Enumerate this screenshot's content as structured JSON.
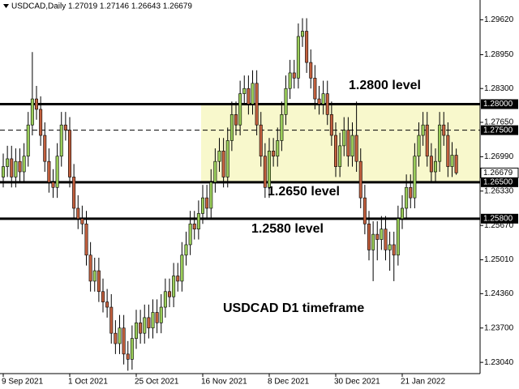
{
  "chart_data": {
    "type": "candlestick",
    "title": "USDCAD,Daily  1.27019 1.27146 1.26643 1.26679",
    "categories": [
      "9 Sep 2021",
      null,
      null,
      null,
      null,
      null,
      null,
      null,
      null,
      null,
      null,
      null,
      null,
      null,
      null,
      null,
      "1 Oct 2021",
      null,
      null,
      null,
      null,
      null,
      null,
      null,
      null,
      null,
      null,
      null,
      null,
      null,
      null,
      null,
      "25 Oct 2021",
      null,
      null,
      null,
      null,
      null,
      null,
      null,
      null,
      null,
      null,
      null,
      null,
      null,
      null,
      null,
      "16 Nov 2021",
      null,
      null,
      null,
      null,
      null,
      null,
      null,
      null,
      null,
      null,
      null,
      null,
      null,
      null,
      null,
      "8 Dec 2021",
      null,
      null,
      null,
      null,
      null,
      null,
      null,
      null,
      null,
      null,
      null,
      null,
      null,
      null,
      null,
      "30 Dec 2021",
      null,
      null,
      null,
      null,
      null,
      null,
      null,
      null,
      null,
      null,
      null,
      null,
      null,
      null,
      null,
      "21 Jan 2022",
      null,
      null,
      null,
      null,
      null,
      null,
      null,
      null,
      null,
      null,
      null,
      null,
      null
    ],
    "open": [
      1.266,
      1.268,
      1.2695,
      1.266,
      1.269,
      1.267,
      1.27,
      1.276,
      1.281,
      1.279,
      1.274,
      1.269,
      1.265,
      1.264,
      1.27,
      1.276,
      1.275,
      1.266,
      1.26,
      1.258,
      1.257,
      1.251,
      1.246,
      1.248,
      1.244,
      1.242,
      1.241,
      1.236,
      1.234,
      1.237,
      1.232,
      1.231,
      1.235,
      1.238,
      1.236,
      1.239,
      1.237,
      1.24,
      1.238,
      1.241,
      1.244,
      1.243,
      1.247,
      1.246,
      1.251,
      1.253,
      1.257,
      1.256,
      1.259,
      1.262,
      1.26,
      1.265,
      1.269,
      1.271,
      1.266,
      1.273,
      1.278,
      1.276,
      1.282,
      1.283,
      1.28,
      1.284,
      1.276,
      1.27,
      1.264,
      1.271,
      1.27,
      1.273,
      1.278,
      1.283,
      1.286,
      1.285,
      1.293,
      1.294,
      1.288,
      1.285,
      1.281,
      1.28,
      1.282,
      1.278,
      1.274,
      1.268,
      1.272,
      1.275,
      1.27,
      1.274,
      1.269,
      1.262,
      1.257,
      1.252,
      1.255,
      1.254,
      1.256,
      1.252,
      1.253,
      1.251,
      1.258,
      1.26,
      1.264,
      1.262,
      1.27,
      1.274,
      1.276,
      1.27,
      1.267,
      1.269,
      1.276,
      1.274,
      1.268,
      1.27019
    ],
    "high": [
      1.2705,
      1.272,
      1.272,
      1.2715,
      1.2715,
      1.2725,
      1.2785,
      1.29,
      1.2835,
      1.2815,
      1.2765,
      1.2715,
      1.2675,
      1.2725,
      1.2785,
      1.2785,
      1.2775,
      1.2685,
      1.2625,
      1.2605,
      1.2595,
      1.2535,
      1.2505,
      1.2505,
      1.2465,
      1.2445,
      1.2435,
      1.2385,
      1.2395,
      1.2395,
      1.2345,
      1.2375,
      1.2405,
      1.2405,
      1.2415,
      1.2415,
      1.2425,
      1.2425,
      1.2435,
      1.2465,
      1.2465,
      1.2495,
      1.2495,
      1.2535,
      1.2555,
      1.2595,
      1.2595,
      1.2615,
      1.2645,
      1.2645,
      1.2675,
      1.2715,
      1.2735,
      1.2735,
      1.2755,
      1.2805,
      1.2805,
      1.2845,
      1.2855,
      1.2855,
      1.2865,
      1.2865,
      1.2785,
      1.2725,
      1.2735,
      1.2735,
      1.2755,
      1.2805,
      1.2855,
      1.2885,
      1.2885,
      1.2955,
      1.2965,
      1.2965,
      1.2905,
      1.2875,
      1.2835,
      1.2845,
      1.2845,
      1.2805,
      1.2765,
      1.2745,
      1.2775,
      1.2775,
      1.2765,
      1.2805,
      1.2715,
      1.2645,
      1.2595,
      1.2575,
      1.2575,
      1.2585,
      1.2585,
      1.2555,
      1.2555,
      1.2605,
      1.2625,
      1.2665,
      1.2665,
      1.2725,
      1.2765,
      1.2785,
      1.2785,
      1.2725,
      1.2715,
      1.2785,
      1.2785,
      1.2765,
      1.2727,
      1.27146
    ],
    "low": [
      1.264,
      1.266,
      1.264,
      1.264,
      1.265,
      1.265,
      1.268,
      1.274,
      1.277,
      1.272,
      1.267,
      1.263,
      1.262,
      1.262,
      1.268,
      1.273,
      1.264,
      1.258,
      1.256,
      1.255,
      1.249,
      1.244,
      1.244,
      1.242,
      1.24,
      1.239,
      1.234,
      1.232,
      1.232,
      1.23,
      1.2288,
      1.229,
      1.233,
      1.234,
      1.234,
      1.235,
      1.235,
      1.236,
      1.236,
      1.239,
      1.241,
      1.241,
      1.244,
      1.244,
      1.249,
      1.251,
      1.254,
      1.254,
      1.257,
      1.258,
      1.258,
      1.263,
      1.267,
      1.264,
      1.264,
      1.271,
      1.274,
      1.274,
      1.28,
      1.278,
      1.278,
      1.274,
      1.268,
      1.262,
      1.262,
      1.268,
      1.268,
      1.271,
      1.276,
      1.281,
      1.283,
      1.283,
      1.291,
      1.286,
      1.283,
      1.279,
      1.278,
      1.278,
      1.276,
      1.272,
      1.266,
      1.266,
      1.27,
      1.268,
      1.268,
      1.267,
      1.26,
      1.255,
      1.25,
      1.246,
      1.25,
      1.252,
      1.25,
      1.248,
      1.246,
      1.249,
      1.256,
      1.258,
      1.26,
      1.26,
      1.268,
      1.272,
      1.268,
      1.265,
      1.265,
      1.267,
      1.272,
      1.266,
      1.266,
      1.26643
    ],
    "close": [
      1.268,
      1.2695,
      1.266,
      1.269,
      1.267,
      1.27,
      1.276,
      1.281,
      1.279,
      1.274,
      1.269,
      1.265,
      1.264,
      1.27,
      1.276,
      1.275,
      1.266,
      1.26,
      1.258,
      1.257,
      1.251,
      1.246,
      1.248,
      1.244,
      1.242,
      1.241,
      1.236,
      1.234,
      1.237,
      1.232,
      1.231,
      1.235,
      1.238,
      1.236,
      1.239,
      1.237,
      1.24,
      1.238,
      1.241,
      1.244,
      1.243,
      1.247,
      1.246,
      1.251,
      1.253,
      1.257,
      1.256,
      1.259,
      1.262,
      1.26,
      1.265,
      1.269,
      1.271,
      1.266,
      1.273,
      1.278,
      1.276,
      1.282,
      1.283,
      1.28,
      1.284,
      1.276,
      1.27,
      1.264,
      1.271,
      1.27,
      1.273,
      1.278,
      1.283,
      1.286,
      1.285,
      1.293,
      1.294,
      1.288,
      1.285,
      1.281,
      1.28,
      1.282,
      1.278,
      1.274,
      1.268,
      1.272,
      1.275,
      1.27,
      1.274,
      1.269,
      1.262,
      1.257,
      1.252,
      1.255,
      1.254,
      1.256,
      1.252,
      1.253,
      1.251,
      1.258,
      1.26,
      1.264,
      1.262,
      1.27,
      1.274,
      1.276,
      1.27,
      1.267,
      1.269,
      1.276,
      1.274,
      1.268,
      1.2702,
      1.26679
    ],
    "up_color": "#9acd5a",
    "down_color": "#c2603e",
    "ylim": [
      1.2284,
      1.3
    ],
    "yticks": [
      {
        "value": 1.2962,
        "label": "1.29620"
      },
      {
        "value": 1.2895,
        "label": "1.28950"
      },
      {
        "value": 1.283,
        "label": "1.28300"
      },
      {
        "value": 1.2765,
        "label": "1.27650"
      },
      {
        "value": 1.2699,
        "label": "1.26990"
      },
      {
        "value": 1.2633,
        "label": "1.26330"
      },
      {
        "value": 1.2567,
        "label": "1.25670"
      },
      {
        "value": 1.2501,
        "label": "1.25010"
      },
      {
        "value": 1.2436,
        "label": "1.24360"
      },
      {
        "value": 1.237,
        "label": "1.23700"
      },
      {
        "value": 1.2304,
        "label": "1.23040"
      }
    ],
    "levels": [
      {
        "value": 1.28,
        "label": "1.28000",
        "style": "solid"
      },
      {
        "value": 1.275,
        "label": "1.27500",
        "style": "dashed"
      },
      {
        "value": 1.265,
        "label": "1.26500",
        "style": "solid"
      },
      {
        "value": 1.258,
        "label": "1.25800",
        "style": "solid"
      }
    ],
    "current_price": {
      "value": 1.26679,
      "label": "1.26679"
    },
    "zone": {
      "from": 1.265,
      "to": 1.28,
      "color": "#f8f8cc"
    },
    "annotations": [
      "1.2800 level",
      "1.2650 level",
      "1.2580 level",
      "USDCAD D1 timeframe"
    ]
  }
}
